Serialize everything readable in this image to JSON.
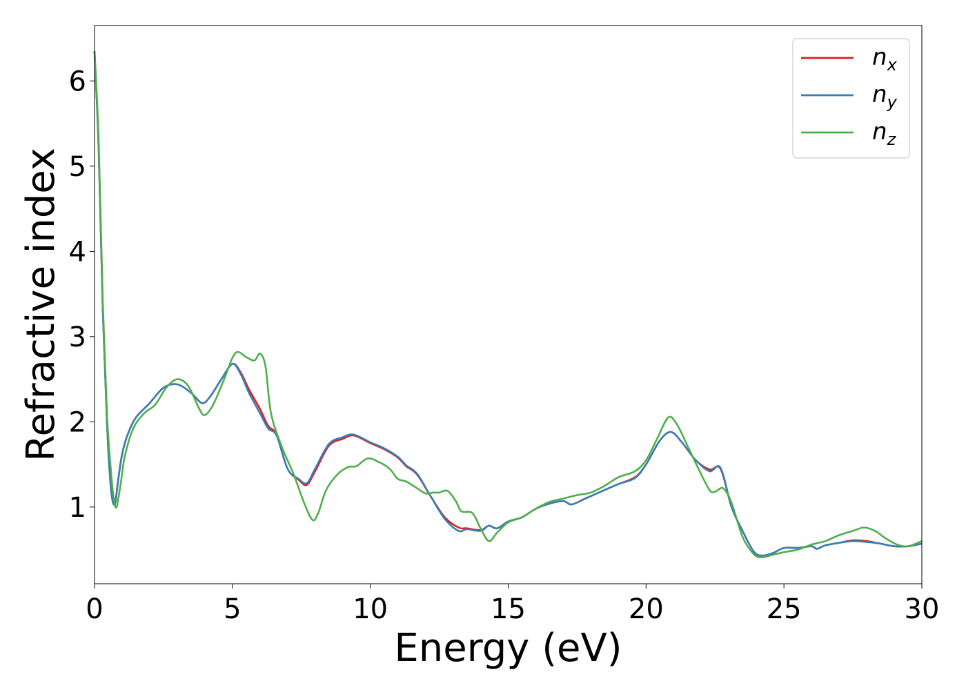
{
  "chart_data": {
    "type": "line",
    "title": "",
    "xlabel": "Energy (eV)",
    "ylabel": "Refractive index",
    "xlim": [
      0,
      30
    ],
    "ylim": [
      0.1,
      6.65
    ],
    "xticks": [
      "0",
      "5",
      "10",
      "15",
      "20",
      "25",
      "30"
    ],
    "yticks": [
      "1",
      "2",
      "3",
      "4",
      "5",
      "6"
    ],
    "grid": false,
    "legend_position": "top-right",
    "series": [
      {
        "name_main": "n",
        "name_sub": "x",
        "color": "#e41a1c",
        "points": [
          [
            0,
            6.35
          ],
          [
            0.15,
            5.2
          ],
          [
            0.3,
            3.3
          ],
          [
            0.45,
            2.0
          ],
          [
            0.55,
            1.4
          ],
          [
            0.65,
            1.08
          ],
          [
            0.75,
            1.05
          ],
          [
            0.85,
            1.3
          ],
          [
            1.0,
            1.62
          ],
          [
            1.2,
            1.85
          ],
          [
            1.5,
            2.05
          ],
          [
            2.0,
            2.22
          ],
          [
            2.5,
            2.4
          ],
          [
            3.0,
            2.44
          ],
          [
            3.5,
            2.34
          ],
          [
            3.9,
            2.22
          ],
          [
            4.2,
            2.3
          ],
          [
            4.6,
            2.5
          ],
          [
            5.0,
            2.68
          ],
          [
            5.3,
            2.58
          ],
          [
            5.6,
            2.38
          ],
          [
            6.0,
            2.15
          ],
          [
            6.3,
            1.95
          ],
          [
            6.6,
            1.85
          ],
          [
            7.0,
            1.45
          ],
          [
            7.4,
            1.32
          ],
          [
            7.7,
            1.26
          ],
          [
            8.0,
            1.42
          ],
          [
            8.5,
            1.72
          ],
          [
            9.0,
            1.8
          ],
          [
            9.4,
            1.84
          ],
          [
            10.0,
            1.75
          ],
          [
            10.5,
            1.68
          ],
          [
            11.0,
            1.58
          ],
          [
            11.3,
            1.48
          ],
          [
            11.7,
            1.38
          ],
          [
            12.2,
            1.12
          ],
          [
            12.7,
            0.88
          ],
          [
            13.2,
            0.76
          ],
          [
            13.5,
            0.75
          ],
          [
            14.0,
            0.73
          ],
          [
            14.3,
            0.78
          ],
          [
            14.6,
            0.75
          ],
          [
            15.0,
            0.83
          ],
          [
            15.5,
            0.88
          ],
          [
            16.0,
            0.98
          ],
          [
            16.5,
            1.04
          ],
          [
            17.0,
            1.07
          ],
          [
            17.3,
            1.03
          ],
          [
            17.8,
            1.1
          ],
          [
            18.5,
            1.2
          ],
          [
            19.0,
            1.27
          ],
          [
            19.6,
            1.35
          ],
          [
            20.0,
            1.5
          ],
          [
            20.5,
            1.78
          ],
          [
            20.9,
            1.88
          ],
          [
            21.3,
            1.76
          ],
          [
            21.8,
            1.55
          ],
          [
            22.3,
            1.44
          ],
          [
            22.7,
            1.45
          ],
          [
            23.1,
            1.0
          ],
          [
            23.5,
            0.72
          ],
          [
            23.9,
            0.48
          ],
          [
            24.2,
            0.43
          ],
          [
            24.6,
            0.46
          ],
          [
            25.0,
            0.52
          ],
          [
            25.5,
            0.52
          ],
          [
            26.0,
            0.54
          ],
          [
            26.2,
            0.51
          ],
          [
            26.5,
            0.55
          ],
          [
            27.0,
            0.58
          ],
          [
            27.5,
            0.61
          ],
          [
            28.0,
            0.6
          ],
          [
            28.5,
            0.57
          ],
          [
            29.0,
            0.54
          ],
          [
            29.5,
            0.54
          ],
          [
            30.0,
            0.57
          ]
        ]
      },
      {
        "name_main": "n",
        "name_sub": "y",
        "color": "#377eb8",
        "points": [
          [
            0,
            6.35
          ],
          [
            0.15,
            5.2
          ],
          [
            0.3,
            3.3
          ],
          [
            0.45,
            2.0
          ],
          [
            0.55,
            1.4
          ],
          [
            0.65,
            1.08
          ],
          [
            0.75,
            1.05
          ],
          [
            0.85,
            1.3
          ],
          [
            1.0,
            1.62
          ],
          [
            1.2,
            1.85
          ],
          [
            1.5,
            2.05
          ],
          [
            2.0,
            2.22
          ],
          [
            2.5,
            2.4
          ],
          [
            3.0,
            2.44
          ],
          [
            3.5,
            2.34
          ],
          [
            3.9,
            2.22
          ],
          [
            4.2,
            2.3
          ],
          [
            4.6,
            2.5
          ],
          [
            5.0,
            2.68
          ],
          [
            5.3,
            2.56
          ],
          [
            5.6,
            2.34
          ],
          [
            6.0,
            2.1
          ],
          [
            6.3,
            1.92
          ],
          [
            6.6,
            1.84
          ],
          [
            7.0,
            1.45
          ],
          [
            7.4,
            1.33
          ],
          [
            7.7,
            1.28
          ],
          [
            8.0,
            1.45
          ],
          [
            8.5,
            1.74
          ],
          [
            9.0,
            1.82
          ],
          [
            9.4,
            1.85
          ],
          [
            10.0,
            1.76
          ],
          [
            10.5,
            1.69
          ],
          [
            11.0,
            1.59
          ],
          [
            11.3,
            1.49
          ],
          [
            11.7,
            1.39
          ],
          [
            12.2,
            1.12
          ],
          [
            12.7,
            0.86
          ],
          [
            13.2,
            0.72
          ],
          [
            13.5,
            0.74
          ],
          [
            14.0,
            0.72
          ],
          [
            14.3,
            0.78
          ],
          [
            14.6,
            0.75
          ],
          [
            15.0,
            0.83
          ],
          [
            15.5,
            0.88
          ],
          [
            16.0,
            0.98
          ],
          [
            16.5,
            1.04
          ],
          [
            17.0,
            1.07
          ],
          [
            17.3,
            1.03
          ],
          [
            17.8,
            1.1
          ],
          [
            18.5,
            1.2
          ],
          [
            19.0,
            1.27
          ],
          [
            19.6,
            1.34
          ],
          [
            20.0,
            1.5
          ],
          [
            20.5,
            1.78
          ],
          [
            20.9,
            1.88
          ],
          [
            21.3,
            1.76
          ],
          [
            21.8,
            1.55
          ],
          [
            22.3,
            1.42
          ],
          [
            22.7,
            1.46
          ],
          [
            23.1,
            1.0
          ],
          [
            23.5,
            0.72
          ],
          [
            23.9,
            0.48
          ],
          [
            24.2,
            0.43
          ],
          [
            24.6,
            0.46
          ],
          [
            25.0,
            0.52
          ],
          [
            25.5,
            0.52
          ],
          [
            26.0,
            0.54
          ],
          [
            26.2,
            0.51
          ],
          [
            26.5,
            0.55
          ],
          [
            27.0,
            0.58
          ],
          [
            27.5,
            0.6
          ],
          [
            28.0,
            0.59
          ],
          [
            28.5,
            0.57
          ],
          [
            29.0,
            0.54
          ],
          [
            29.5,
            0.54
          ],
          [
            30.0,
            0.57
          ]
        ]
      },
      {
        "name_main": "n",
        "name_sub": "z",
        "color": "#4daf4a",
        "points": [
          [
            0,
            6.35
          ],
          [
            0.15,
            5.3
          ],
          [
            0.3,
            3.4
          ],
          [
            0.45,
            2.1
          ],
          [
            0.6,
            1.4
          ],
          [
            0.7,
            1.1
          ],
          [
            0.8,
            1.0
          ],
          [
            0.95,
            1.28
          ],
          [
            1.1,
            1.6
          ],
          [
            1.4,
            1.92
          ],
          [
            1.8,
            2.1
          ],
          [
            2.2,
            2.2
          ],
          [
            2.6,
            2.4
          ],
          [
            3.0,
            2.5
          ],
          [
            3.4,
            2.42
          ],
          [
            3.8,
            2.15
          ],
          [
            4.0,
            2.08
          ],
          [
            4.3,
            2.2
          ],
          [
            4.7,
            2.5
          ],
          [
            5.0,
            2.75
          ],
          [
            5.2,
            2.82
          ],
          [
            5.5,
            2.76
          ],
          [
            5.8,
            2.72
          ],
          [
            6.0,
            2.8
          ],
          [
            6.2,
            2.65
          ],
          [
            6.4,
            2.1
          ],
          [
            6.8,
            1.7
          ],
          [
            7.2,
            1.4
          ],
          [
            7.6,
            1.05
          ],
          [
            7.9,
            0.85
          ],
          [
            8.1,
            0.92
          ],
          [
            8.4,
            1.2
          ],
          [
            8.8,
            1.38
          ],
          [
            9.2,
            1.47
          ],
          [
            9.5,
            1.48
          ],
          [
            9.9,
            1.57
          ],
          [
            10.3,
            1.53
          ],
          [
            10.7,
            1.45
          ],
          [
            11.0,
            1.33
          ],
          [
            11.3,
            1.3
          ],
          [
            11.7,
            1.22
          ],
          [
            12.0,
            1.16
          ],
          [
            12.3,
            1.17
          ],
          [
            12.5,
            1.17
          ],
          [
            12.8,
            1.19
          ],
          [
            13.1,
            1.07
          ],
          [
            13.3,
            0.95
          ],
          [
            13.7,
            0.93
          ],
          [
            14.0,
            0.75
          ],
          [
            14.3,
            0.6
          ],
          [
            14.6,
            0.7
          ],
          [
            15.0,
            0.82
          ],
          [
            15.5,
            0.88
          ],
          [
            16.0,
            0.98
          ],
          [
            16.5,
            1.06
          ],
          [
            17.0,
            1.1
          ],
          [
            17.5,
            1.14
          ],
          [
            18.0,
            1.17
          ],
          [
            18.5,
            1.25
          ],
          [
            19.0,
            1.35
          ],
          [
            19.6,
            1.42
          ],
          [
            20.0,
            1.55
          ],
          [
            20.4,
            1.8
          ],
          [
            20.8,
            2.05
          ],
          [
            21.1,
            1.98
          ],
          [
            21.5,
            1.72
          ],
          [
            21.9,
            1.45
          ],
          [
            22.3,
            1.2
          ],
          [
            22.5,
            1.18
          ],
          [
            22.8,
            1.22
          ],
          [
            23.1,
            1.05
          ],
          [
            23.5,
            0.65
          ],
          [
            23.9,
            0.45
          ],
          [
            24.2,
            0.41
          ],
          [
            24.6,
            0.44
          ],
          [
            25.0,
            0.47
          ],
          [
            25.5,
            0.5
          ],
          [
            26.0,
            0.56
          ],
          [
            26.5,
            0.6
          ],
          [
            27.0,
            0.67
          ],
          [
            27.5,
            0.72
          ],
          [
            27.9,
            0.76
          ],
          [
            28.3,
            0.72
          ],
          [
            28.7,
            0.63
          ],
          [
            29.1,
            0.56
          ],
          [
            29.5,
            0.54
          ],
          [
            30.0,
            0.6
          ]
        ]
      }
    ]
  }
}
